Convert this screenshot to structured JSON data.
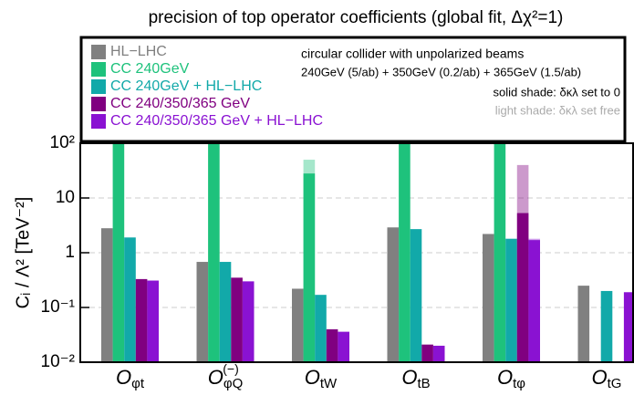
{
  "chart_data": {
    "type": "bar",
    "title": "precision of top operator coefficients (global fit, Δχ²=1)",
    "y_label": "Cᵢ / Λ² [TeV⁻²]",
    "log_scale": true,
    "grid": true,
    "ylim": [
      0.01,
      100
    ],
    "yticks": [
      {
        "value": 0.01,
        "label": "10⁻²"
      },
      {
        "value": 0.1,
        "label": "10⁻¹"
      },
      1,
      10,
      {
        "value": 100,
        "label": "10²"
      }
    ],
    "categories": [
      "Oφt",
      "OφQ(−)",
      "OtW",
      "OtB",
      "Otφ",
      "OtG"
    ],
    "series": [
      {
        "name": "HL−LHC",
        "color": "#808080",
        "values": [
          2.8,
          0.68,
          0.22,
          2.9,
          2.2,
          0.25
        ],
        "free_values": [
          null,
          null,
          null,
          null,
          null,
          null
        ]
      },
      {
        "name": "CC 240GeV",
        "color": "#1ec27c",
        "values": [
          100,
          100,
          28,
          100,
          100,
          null
        ],
        "free_values": [
          null,
          null,
          50,
          null,
          null,
          null
        ]
      },
      {
        "name": "CC 240GeV + HL−LHC",
        "color": "#12a9a9",
        "values": [
          1.9,
          0.68,
          0.17,
          2.7,
          1.8,
          0.2
        ],
        "free_values": [
          null,
          null,
          null,
          null,
          null,
          null
        ]
      },
      {
        "name": "CC 240/350/365 GeV",
        "color": "#800080",
        "values": [
          0.33,
          0.35,
          0.04,
          0.021,
          5.3,
          null
        ],
        "free_values": [
          null,
          null,
          null,
          null,
          40,
          null
        ]
      },
      {
        "name": "CC 240/350/365 GeV + HL−LHC",
        "color": "#8a12d2",
        "values": [
          0.31,
          0.3,
          0.036,
          0.02,
          1.7,
          0.19
        ],
        "free_values": [
          null,
          null,
          null,
          null,
          1.8,
          null
        ]
      }
    ],
    "notes": [
      "circular collider with unpolarized beams",
      "240GeV (5/ab) + 350GeV (0.2/ab) + 365GeV (1.5/ab)",
      "solid shade: δκλ set to 0",
      "light shade: δκλ set free"
    ]
  }
}
